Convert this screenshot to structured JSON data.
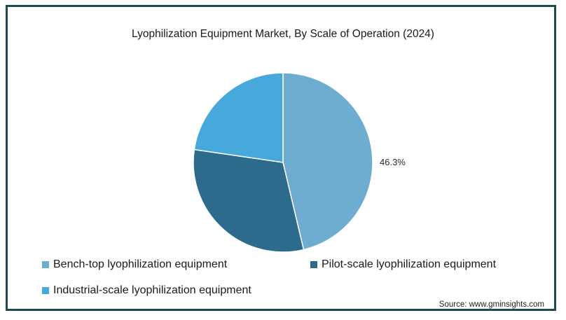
{
  "chart_data": {
    "type": "pie",
    "title": "Lyophilization Equipment Market, By Scale of Operation (2024)",
    "slices": [
      {
        "label": "Bench-top lyophilization equipment",
        "value": 46.3,
        "color": "#6fadd0"
      },
      {
        "label": "Pilot-scale lyophilization equipment",
        "value": 31.0,
        "color": "#2d6b8c"
      },
      {
        "label": "Industrial-scale lyophilization equipment",
        "value": 22.7,
        "color": "#47a8dc"
      }
    ],
    "data_labels": [
      "46.3%"
    ],
    "legend_position": "bottom",
    "source": "Source: www.gminsights.com"
  },
  "colors": {
    "frame_border": "#1f4a52",
    "slice_stroke": "#ffffff"
  }
}
